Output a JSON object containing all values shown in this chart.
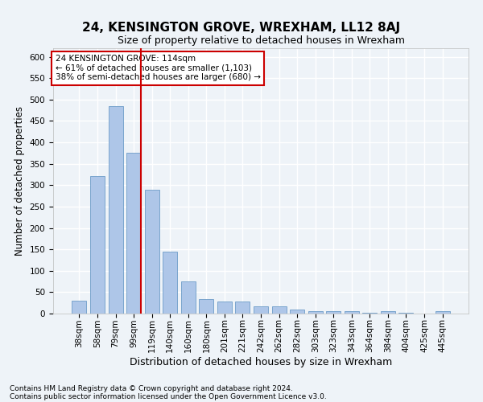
{
  "title": "24, KENSINGTON GROVE, WREXHAM, LL12 8AJ",
  "subtitle": "Size of property relative to detached houses in Wrexham",
  "xlabel": "Distribution of detached houses by size in Wrexham",
  "ylabel": "Number of detached properties",
  "categories": [
    "38sqm",
    "58sqm",
    "79sqm",
    "99sqm",
    "119sqm",
    "140sqm",
    "160sqm",
    "180sqm",
    "201sqm",
    "221sqm",
    "242sqm",
    "262sqm",
    "282sqm",
    "303sqm",
    "323sqm",
    "343sqm",
    "364sqm",
    "384sqm",
    "404sqm",
    "425sqm",
    "445sqm"
  ],
  "values": [
    30,
    322,
    484,
    375,
    290,
    145,
    76,
    33,
    29,
    28,
    16,
    16,
    9,
    6,
    5,
    5,
    1,
    5,
    1,
    0,
    5
  ],
  "bar_color": "#aec6e8",
  "bar_edge_color": "#5a8fc0",
  "vline_x_index": 3,
  "vline_color": "#cc0000",
  "annotation_line1": "24 KENSINGTON GROVE: 114sqm",
  "annotation_line2": "← 61% of detached houses are smaller (1,103)",
  "annotation_line3": "38% of semi-detached houses are larger (680) →",
  "annotation_box_color": "#ffffff",
  "annotation_box_edge": "#cc0000",
  "ylim": [
    0,
    620
  ],
  "yticks": [
    0,
    50,
    100,
    150,
    200,
    250,
    300,
    350,
    400,
    450,
    500,
    550,
    600
  ],
  "footer1": "Contains HM Land Registry data © Crown copyright and database right 2024.",
  "footer2": "Contains public sector information licensed under the Open Government Licence v3.0.",
  "bg_color": "#eef3f8",
  "plot_bg_color": "#eef3f8",
  "grid_color": "#ffffff",
  "title_fontsize": 11,
  "subtitle_fontsize": 9,
  "xlabel_fontsize": 9,
  "ylabel_fontsize": 8.5,
  "tick_fontsize": 7.5,
  "footer_fontsize": 6.5,
  "annotation_fontsize": 7.5
}
